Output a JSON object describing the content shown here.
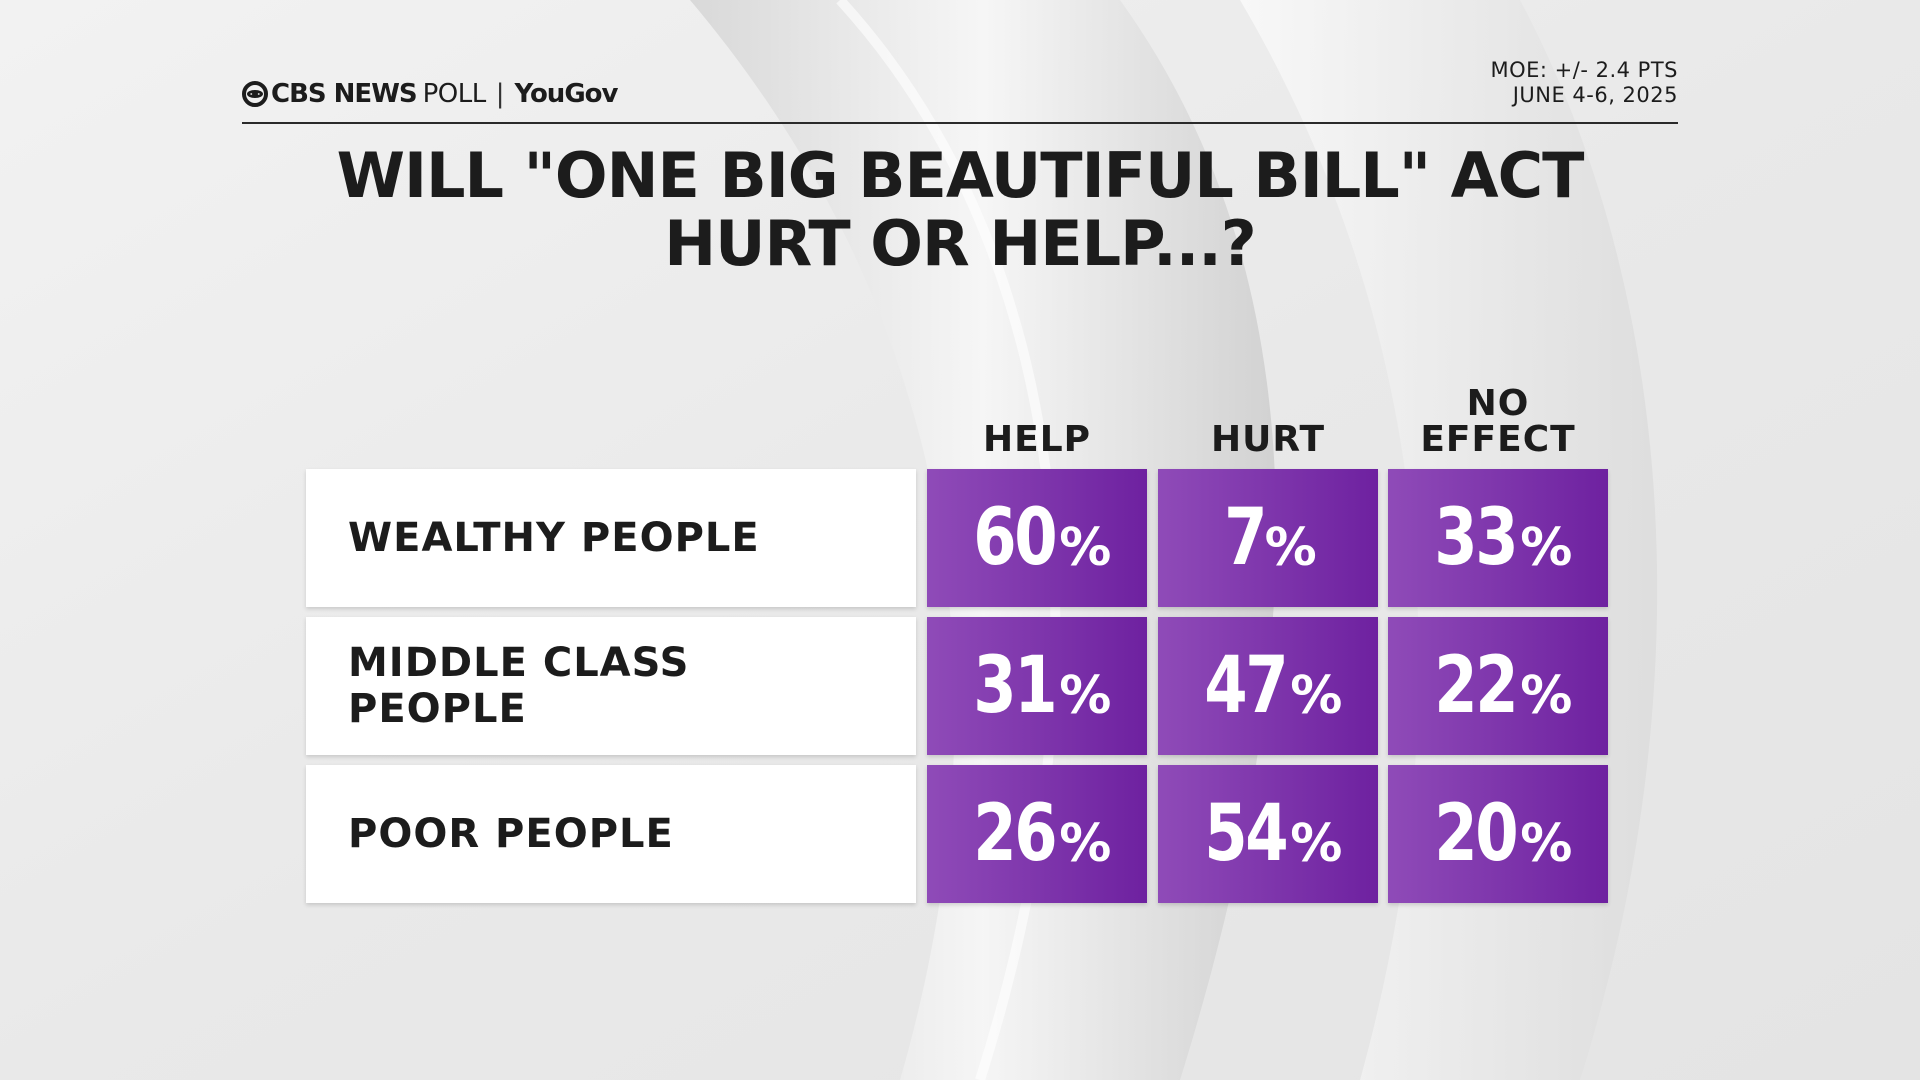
{
  "brand": {
    "cbs": "CBS NEWS",
    "poll": "POLL",
    "separator": "|",
    "partner": "YouGov"
  },
  "meta": {
    "moe": "MOE: +/- 2.4 PTS",
    "dates": "JUNE 4-6, 2025"
  },
  "colors": {
    "purple_light": "#8f4bb8",
    "purple_dark": "#6e21a0",
    "text_dark": "#1c1c1c"
  },
  "chart_data": {
    "type": "table",
    "title_lines": [
      "WILL \"ONE BIG BEAUTIFUL BILL\" ACT",
      "HURT OR HELP...?"
    ],
    "columns": [
      {
        "lines": [
          "HELP"
        ]
      },
      {
        "lines": [
          "HURT"
        ]
      },
      {
        "lines": [
          "NO",
          "EFFECT"
        ]
      }
    ],
    "rows": [
      {
        "label_lines": [
          "WEALTHY PEOPLE"
        ],
        "values": [
          60,
          7,
          33
        ]
      },
      {
        "label_lines": [
          "MIDDLE CLASS",
          "PEOPLE"
        ],
        "values": [
          31,
          47,
          22
        ]
      },
      {
        "label_lines": [
          "POOR PEOPLE"
        ],
        "values": [
          26,
          54,
          20
        ]
      }
    ],
    "unit": "%"
  }
}
